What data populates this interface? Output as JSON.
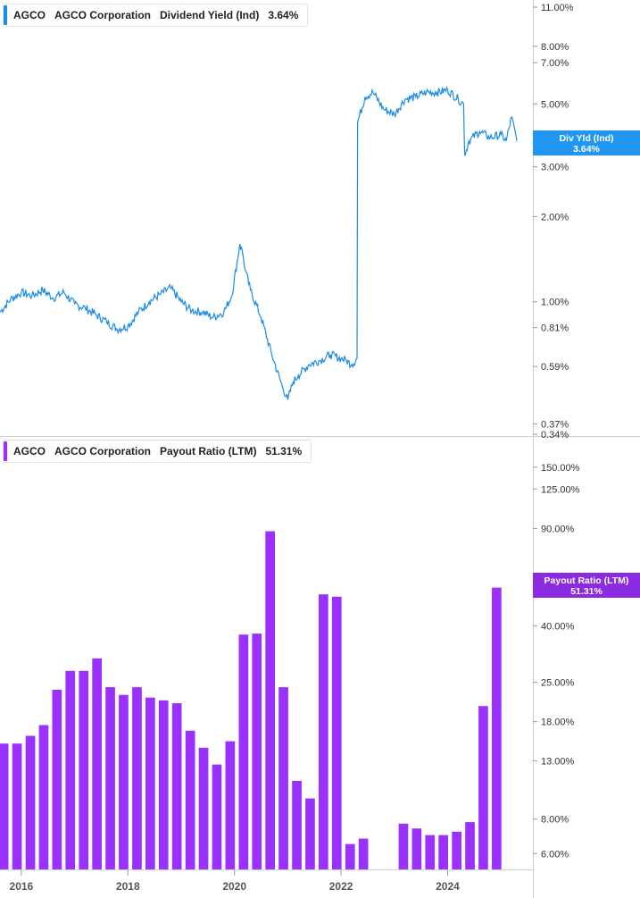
{
  "panels": [
    {
      "ticker": "AGCO",
      "company": "AGCO Corporation",
      "metric": "Dividend Yield (Ind)",
      "value": "3.64%",
      "tag_label": "Div Yld (Ind)",
      "tag_value": "3.64%",
      "color": "#1a8ce8",
      "tag_color": "#2196f3"
    },
    {
      "ticker": "AGCO",
      "company": "AGCO Corporation",
      "metric": "Payout Ratio (LTM)",
      "value": "51.31%",
      "tag_label": "Payout Ratio (LTM)",
      "tag_value": "51.31%",
      "color": "#9b30ff",
      "tag_color": "#8a2be2"
    }
  ],
  "chart_data": [
    {
      "type": "line",
      "scale": "log",
      "ylim": [
        0.34,
        11.0
      ],
      "xlim": [
        2015.6,
        2025.6
      ],
      "yticks": [
        "11.00%",
        "8.00%",
        "7.00%",
        "5.00%",
        "3.00%",
        "2.00%",
        "1.00%",
        "0.81%",
        "0.59%",
        "0.37%",
        "0.34%"
      ],
      "ytick_values": [
        11.0,
        8.0,
        7.0,
        5.0,
        3.0,
        2.0,
        1.0,
        0.81,
        0.59,
        0.37,
        0.34
      ],
      "series": [
        {
          "x": [
            2015.6,
            2015.8,
            2016.0,
            2016.2,
            2016.4,
            2016.6,
            2016.8,
            2017.0,
            2017.2,
            2017.4,
            2017.6,
            2017.8,
            2018.0,
            2018.2,
            2018.4,
            2018.6,
            2018.8,
            2019.0,
            2019.2,
            2019.4,
            2019.6,
            2019.8,
            2019.95,
            2020.1,
            2020.15,
            2020.2,
            2020.3,
            2020.5,
            2020.7,
            2020.9,
            2021.0,
            2021.1,
            2021.2,
            2021.4,
            2021.6,
            2021.8,
            2022.0,
            2022.1,
            2022.2,
            2022.3,
            2022.31,
            2022.45,
            2022.6,
            2022.8,
            2023.0,
            2023.2,
            2023.4,
            2023.6,
            2023.8,
            2024.0,
            2024.2,
            2024.3,
            2024.32,
            2024.4,
            2024.6,
            2024.8,
            2025.0,
            2025.1,
            2025.2,
            2025.3
          ],
          "y": [
            0.92,
            1.02,
            1.08,
            1.05,
            1.1,
            1.03,
            1.08,
            0.98,
            0.95,
            0.9,
            0.85,
            0.8,
            0.82,
            0.92,
            1.0,
            1.06,
            1.12,
            1.0,
            0.93,
            0.92,
            0.88,
            0.92,
            1.05,
            1.6,
            1.5,
            1.3,
            1.1,
            0.88,
            0.65,
            0.5,
            0.45,
            0.52,
            0.55,
            0.6,
            0.62,
            0.65,
            0.63,
            0.62,
            0.6,
            0.63,
            4.3,
            5.3,
            5.5,
            4.8,
            4.6,
            5.2,
            5.3,
            5.5,
            5.5,
            5.6,
            5.2,
            5.0,
            3.3,
            3.7,
            4.0,
            3.8,
            3.9,
            3.7,
            4.5,
            3.7
          ]
        }
      ]
    },
    {
      "type": "bar",
      "scale": "log",
      "ylim": [
        5.3,
        170.0
      ],
      "xlim": [
        2015.6,
        2025.6
      ],
      "yticks": [
        "150.00%",
        "125.00%",
        "90.00%",
        "40.00%",
        "25.00%",
        "18.00%",
        "13.00%",
        "8.00%",
        "6.00%"
      ],
      "ytick_values": [
        150.0,
        125.0,
        90.0,
        40.0,
        25.0,
        18.0,
        13.0,
        8.0,
        6.0
      ],
      "xticks": [
        "2016",
        "2018",
        "2020",
        "2022",
        "2024"
      ],
      "xtick_values": [
        2016.0,
        2018.0,
        2020.0,
        2022.0,
        2024.0
      ],
      "series": [
        {
          "x": [
            2015.67,
            2015.92,
            2016.17,
            2016.42,
            2016.67,
            2016.92,
            2017.17,
            2017.42,
            2017.67,
            2017.92,
            2018.17,
            2018.42,
            2018.67,
            2018.92,
            2019.17,
            2019.42,
            2019.67,
            2019.92,
            2020.17,
            2020.42,
            2020.67,
            2020.92,
            2021.17,
            2021.42,
            2021.67,
            2021.92,
            2022.17,
            2022.42,
            2022.67,
            2022.92,
            2023.17,
            2023.42,
            2023.67,
            2023.92,
            2024.17,
            2024.42,
            2024.67,
            2024.92
          ],
          "values": [
            15.0,
            15.0,
            16.0,
            17.5,
            23.5,
            27.5,
            27.5,
            30.5,
            24.0,
            22.5,
            24.0,
            22.0,
            21.5,
            21.0,
            16.7,
            14.5,
            12.6,
            15.3,
            37.2,
            37.5,
            88.0,
            24.0,
            11.0,
            9.5,
            52.0,
            51.0,
            6.5,
            6.8,
            null,
            null,
            7.7,
            7.4,
            7.0,
            7.0,
            7.2,
            7.8,
            20.5,
            55.0
          ]
        }
      ]
    }
  ]
}
